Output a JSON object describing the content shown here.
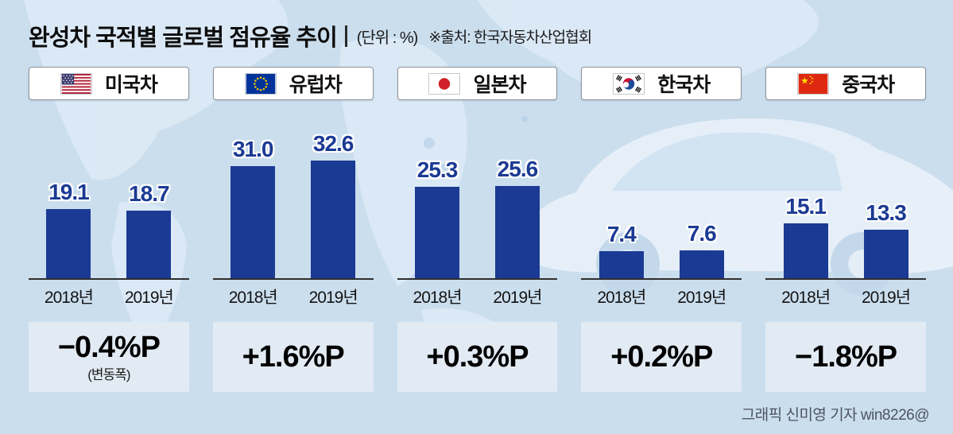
{
  "header": {
    "title": "완성차 국적별 글로벌 점유율 추이",
    "unit": "(단위 : %)",
    "source": "※출처: 한국자동차산업협회"
  },
  "footer": {
    "credit": "그래픽 신미영 기자 win8226@"
  },
  "colors": {
    "background": "#cbdeee",
    "bar": "#1b3a94",
    "change_box": "#e2ebf4"
  },
  "chart_data": {
    "type": "bar",
    "title": "완성차 국적별 글로벌 점유율 추이",
    "unit": "%",
    "categories": [
      "2018년",
      "2019년"
    ],
    "ylim": [
      0,
      35
    ],
    "legend_position": "top",
    "grid": false,
    "groups": [
      {
        "name": "미국차",
        "flag_icon": "us-flag-icon",
        "values": [
          19.1,
          18.7
        ],
        "labels": [
          "19.1",
          "18.7"
        ],
        "change": "−0.4%P",
        "note": "(변동폭)"
      },
      {
        "name": "유럽차",
        "flag_icon": "eu-flag-icon",
        "values": [
          31.0,
          32.6
        ],
        "labels": [
          "31.0",
          "32.6"
        ],
        "change": "+1.6%P"
      },
      {
        "name": "일본차",
        "flag_icon": "japan-flag-icon",
        "values": [
          25.3,
          25.6
        ],
        "labels": [
          "25.3",
          "25.6"
        ],
        "change": "+0.3%P"
      },
      {
        "name": "한국차",
        "flag_icon": "korea-flag-icon",
        "values": [
          7.4,
          7.6
        ],
        "labels": [
          "7.4",
          "7.6"
        ],
        "change": "+0.2%P"
      },
      {
        "name": "중국차",
        "flag_icon": "china-flag-icon",
        "values": [
          15.1,
          13.3
        ],
        "labels": [
          "15.1",
          "13.3"
        ],
        "change": "−1.8%P"
      }
    ]
  }
}
